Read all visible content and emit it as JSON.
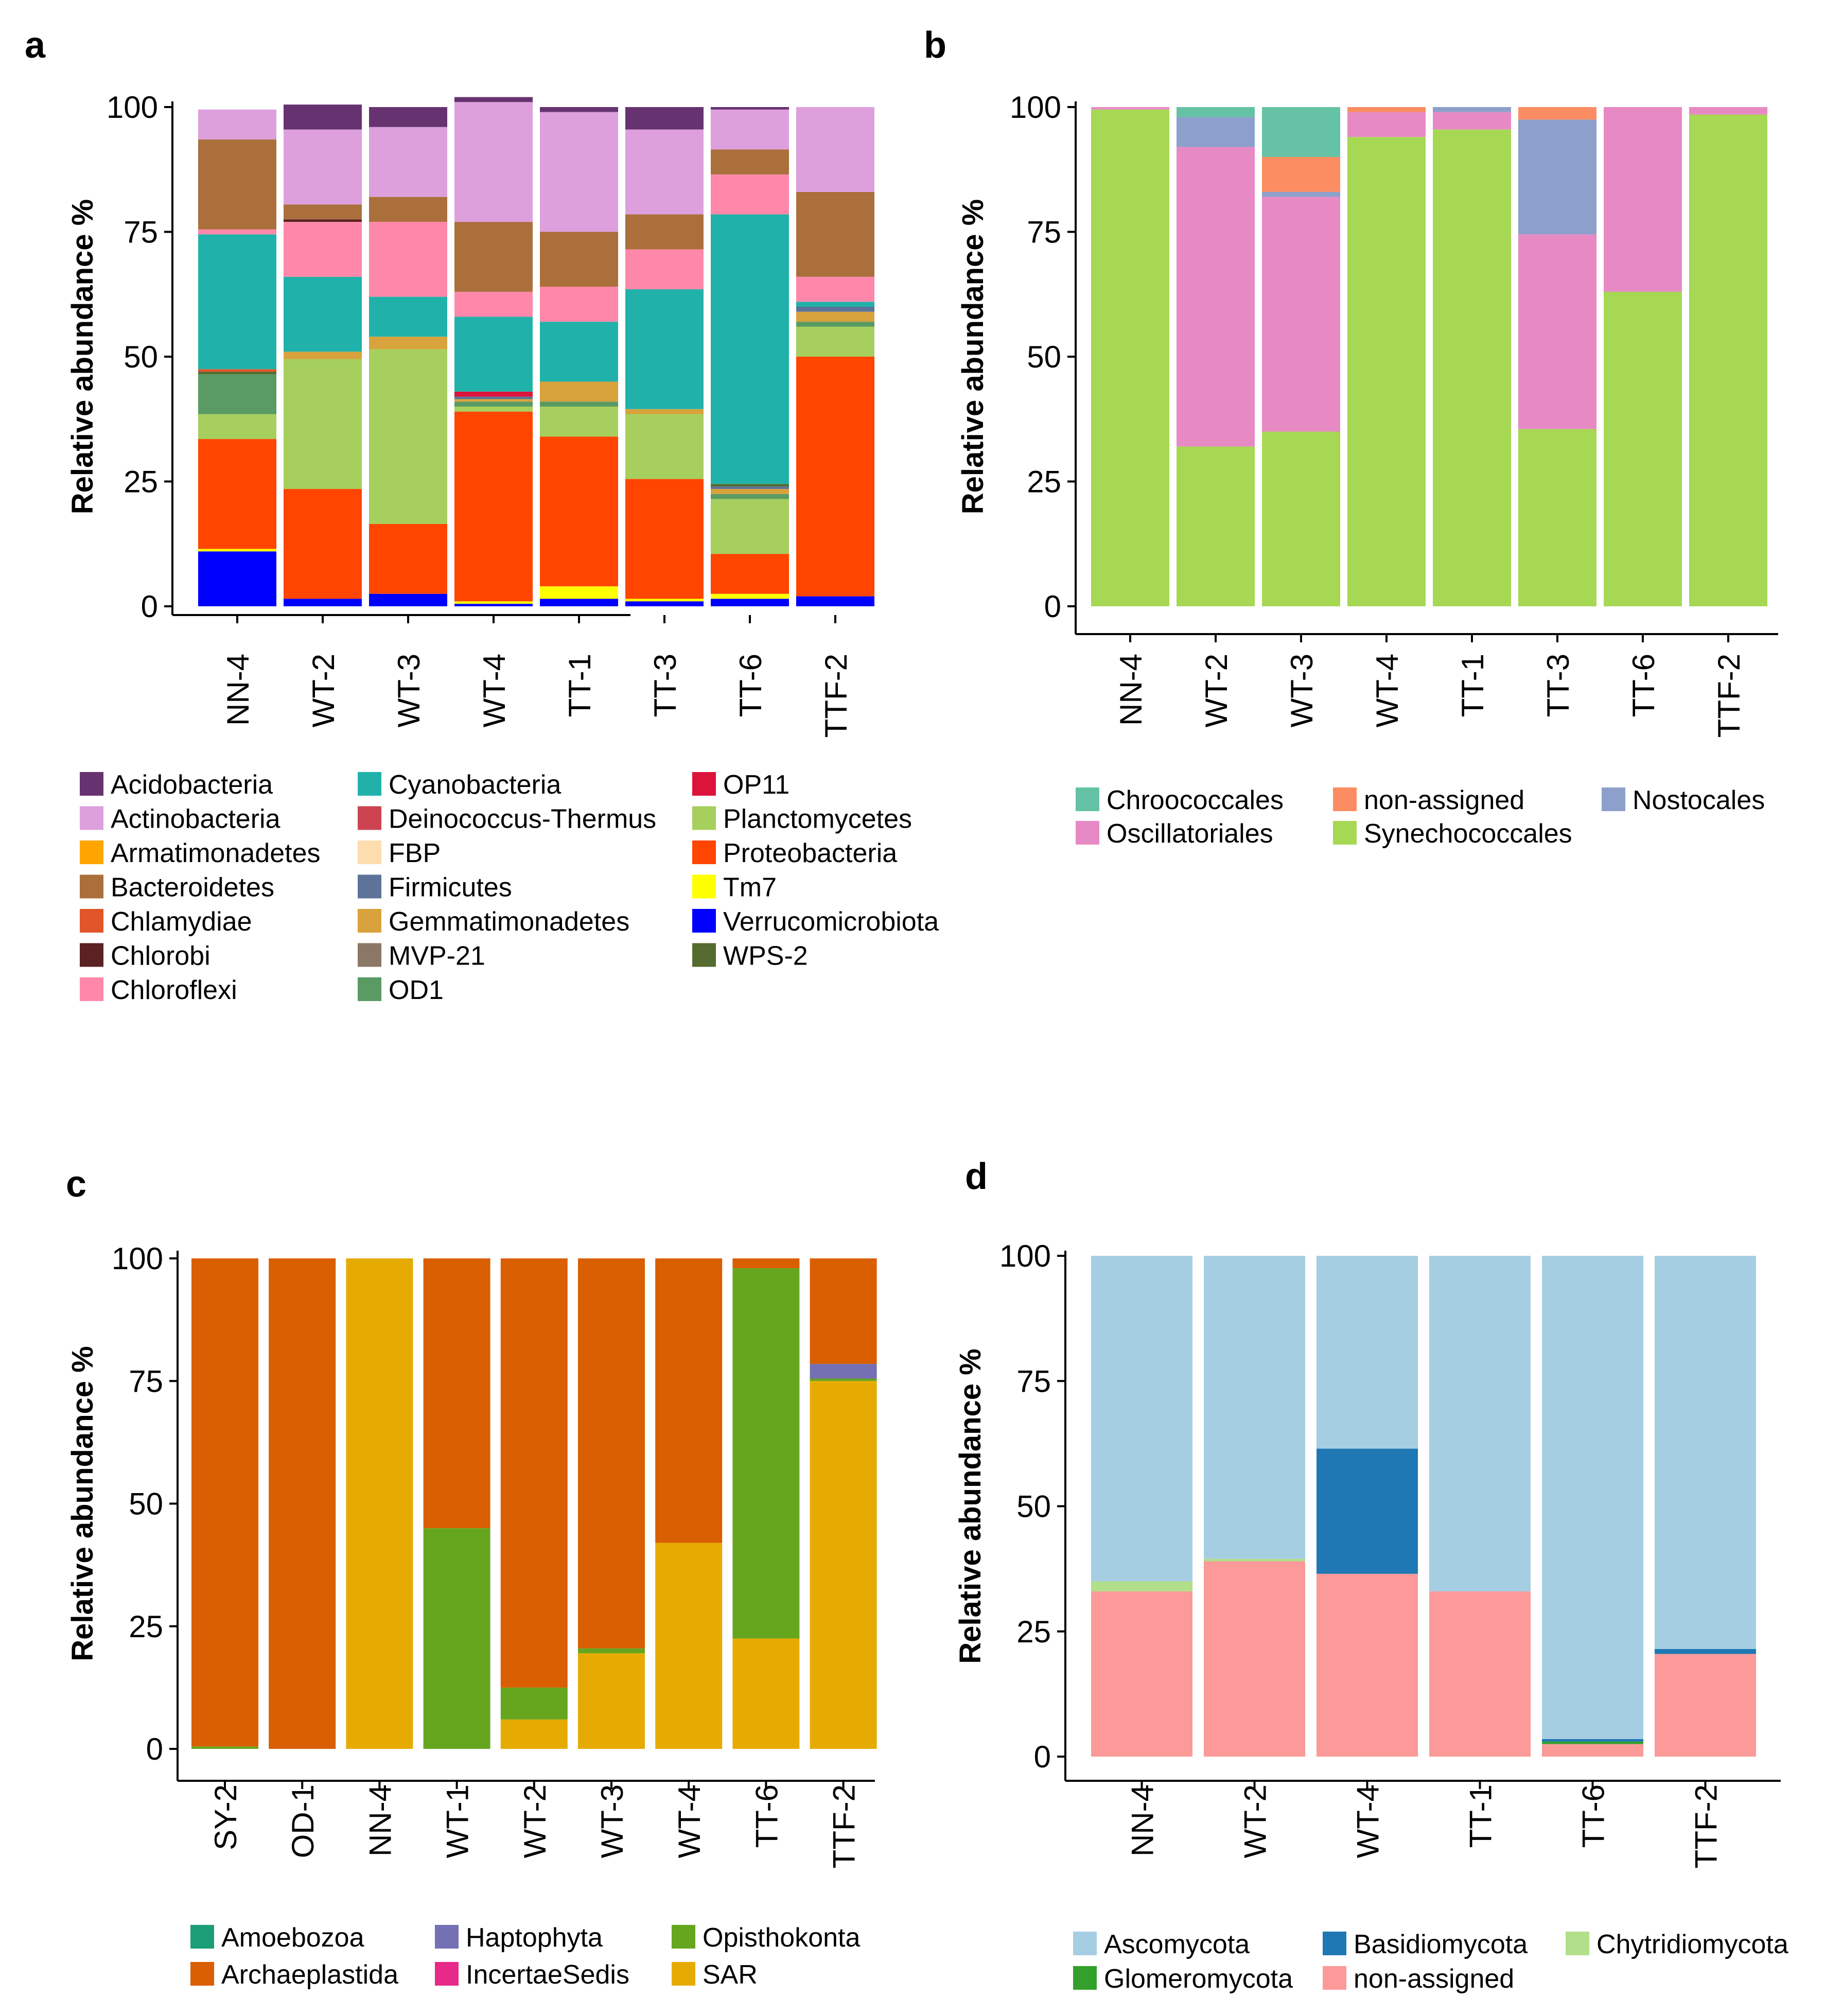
{
  "chart_data": [
    {
      "panel_label": "a",
      "type": "bar",
      "stacked": true,
      "ylabel": "Relative abundance %",
      "yticks": [
        "0",
        "25",
        "50",
        "75",
        "100"
      ],
      "ylim": [
        0,
        100
      ],
      "categories": [
        "NN-4",
        "WT-2",
        "WT-3",
        "WT-4",
        "TT-1",
        "TT-3",
        "TT-6",
        "TTF-2"
      ],
      "legend_columns": 3,
      "series": [
        {
          "name": "Verrucomicrobiota",
          "color": "#0000ff",
          "values": [
            11,
            1.5,
            2.5,
            0.5,
            1.5,
            1,
            1.5,
            2
          ]
        },
        {
          "name": "Tm7",
          "color": "#ffff00",
          "values": [
            0.5,
            0,
            0,
            0.5,
            2.5,
            0.5,
            1,
            0
          ]
        },
        {
          "name": "Proteobacteria",
          "color": "#ff4500",
          "values": [
            22,
            22,
            14,
            38,
            30,
            24,
            8,
            48
          ]
        },
        {
          "name": "Planctomycetes",
          "color": "#a6cf5d",
          "values": [
            5,
            26,
            35,
            1,
            6,
            13,
            11,
            6
          ]
        },
        {
          "name": "OD1",
          "color": "#5a9a63",
          "values": [
            8,
            0,
            0,
            1,
            1,
            0,
            1,
            1
          ]
        },
        {
          "name": "Gemmatimonadetes",
          "color": "#d8a23c",
          "values": [
            0,
            1.5,
            2.5,
            0.5,
            4,
            1,
            1,
            2
          ]
        },
        {
          "name": "Firmicutes",
          "color": "#5d7399",
          "values": [
            0,
            0,
            0,
            0.5,
            0,
            0,
            0.5,
            1
          ]
        },
        {
          "name": "OP11",
          "color": "#dc143c",
          "values": [
            0,
            0,
            0,
            1,
            0,
            0,
            0,
            0
          ]
        },
        {
          "name": "WPS-2",
          "color": "#556b2f",
          "values": [
            0.5,
            0,
            0,
            0,
            0,
            0,
            0.5,
            0
          ]
        },
        {
          "name": "Chlamydiae",
          "color": "#e0552a",
          "values": [
            0.5,
            0,
            0,
            0,
            0,
            0,
            0,
            0
          ]
        },
        {
          "name": "Cyanobacteria",
          "color": "#20b2aa",
          "values": [
            27,
            15,
            8,
            15,
            12,
            24,
            54,
            1
          ]
        },
        {
          "name": "Chloroflexi",
          "color": "#ff88aa",
          "values": [
            1,
            11,
            15,
            5,
            7,
            8,
            8,
            5
          ]
        },
        {
          "name": "Chlorobi",
          "color": "#5a2222",
          "values": [
            0,
            0.5,
            0,
            0,
            0,
            0,
            0,
            0
          ]
        },
        {
          "name": "Bacteroidetes",
          "color": "#ab6f3c",
          "values": [
            18,
            3,
            5,
            14,
            11,
            7,
            5,
            17
          ]
        },
        {
          "name": "Actinobacteria",
          "color": "#dda0dd",
          "values": [
            6,
            15,
            14,
            24,
            24,
            17,
            8,
            17
          ]
        },
        {
          "name": "Acidobacteria",
          "color": "#663370",
          "values": [
            0,
            5,
            4,
            1,
            1,
            4.5,
            0.5,
            0
          ]
        }
      ],
      "legend": [
        "Acidobacteria",
        "Actinobacteria",
        "Armatimonadetes",
        "Bacteroidetes",
        "Chlamydiae",
        "Chlorobi",
        "Chloroflexi",
        "Cyanobacteria",
        "Deinococcus-Thermus",
        "FBP",
        "Firmicutes",
        "Gemmatimonadetes",
        "MVP-21",
        "OD1",
        "OP11",
        "Planctomycetes",
        "Proteobacteria",
        "Tm7",
        "Verrucomicrobiota",
        "WPS-2"
      ],
      "legend_colors": [
        "#663370",
        "#dda0dd",
        "#ffa500",
        "#ab6f3c",
        "#e0552a",
        "#5a2222",
        "#ff88aa",
        "#20b2aa",
        "#cd4450",
        "#fddcad",
        "#5d7399",
        "#d8a23c",
        "#8b7765",
        "#5a9a63",
        "#dc143c",
        "#a6cf5d",
        "#ff4500",
        "#ffff00",
        "#0000ff",
        "#556b2f"
      ]
    },
    {
      "panel_label": "b",
      "type": "bar",
      "stacked": true,
      "ylabel": "Relative abundance %",
      "yticks": [
        "0",
        "25",
        "50",
        "75",
        "100"
      ],
      "ylim": [
        0,
        100
      ],
      "categories": [
        "NN-4",
        "WT-2",
        "WT-3",
        "WT-4",
        "TT-1",
        "TT-3",
        "TT-6",
        "TTF-2"
      ],
      "legend_columns": 3,
      "series": [
        {
          "name": "Synechococcales",
          "color": "#a6d854",
          "values": [
            99.5,
            32,
            35,
            94,
            95.5,
            35.5,
            63,
            98.5
          ]
        },
        {
          "name": "Oscillatoriales",
          "color": "#e78ac3",
          "values": [
            0.5,
            60,
            47,
            5,
            3.5,
            39,
            37,
            1.5
          ]
        },
        {
          "name": "Nostocales",
          "color": "#8da0cb",
          "values": [
            0,
            6,
            1,
            0,
            1,
            23,
            0,
            0
          ]
        },
        {
          "name": "non-assigned",
          "color": "#fc8d62",
          "values": [
            0,
            0,
            7,
            1,
            0,
            2.5,
            0,
            0
          ]
        },
        {
          "name": "Chroococcales",
          "color": "#66c2a5",
          "values": [
            0,
            2,
            10,
            0,
            0,
            0,
            0,
            0
          ]
        }
      ],
      "legend": [
        "Chroococcales",
        "Oscillatoriales",
        "non-assigned",
        "Synechococcales",
        "Nostocales"
      ],
      "legend_colors": [
        "#66c2a5",
        "#e78ac3",
        "#fc8d62",
        "#a6d854",
        "#8da0cb"
      ]
    },
    {
      "panel_label": "c",
      "type": "bar",
      "stacked": true,
      "ylabel": "Relative abundance %",
      "yticks": [
        "0",
        "25",
        "50",
        "75",
        "100"
      ],
      "ylim": [
        0,
        100
      ],
      "categories": [
        "SY-2",
        "OD-1",
        "NN-4",
        "WT-1",
        "WT-2",
        "WT-3",
        "WT-4",
        "TT-6",
        "TTF-2"
      ],
      "legend_columns": 3,
      "series": [
        {
          "name": "SAR",
          "color": "#e6ab02",
          "values": [
            0,
            0,
            100,
            0,
            6,
            19.5,
            42,
            22.5,
            75
          ]
        },
        {
          "name": "Opisthokonta",
          "color": "#66a61e",
          "values": [
            0.5,
            0,
            0,
            45,
            6.5,
            1,
            0,
            75.5,
            0.5
          ]
        },
        {
          "name": "Haptophyta",
          "color": "#7570b3",
          "values": [
            0,
            0,
            0,
            0,
            0,
            0,
            0,
            0,
            3
          ]
        },
        {
          "name": "Archaeplastida",
          "color": "#d95f02",
          "values": [
            99.5,
            100,
            0,
            55,
            87.5,
            79.5,
            58,
            2,
            21.5
          ]
        }
      ],
      "legend": [
        "Amoebozoa",
        "Archaeplastida",
        "Haptophyta",
        "IncertaeSedis",
        "Opisthokonta",
        "SAR"
      ],
      "legend_colors": [
        "#1b9e77",
        "#d95f02",
        "#7570b3",
        "#e7298a",
        "#66a61e",
        "#e6ab02"
      ]
    },
    {
      "panel_label": "d",
      "type": "bar",
      "stacked": true,
      "ylabel": "Relative abundance %",
      "yticks": [
        "0",
        "25",
        "50",
        "75",
        "100"
      ],
      "ylim": [
        0,
        100
      ],
      "categories": [
        "NN-4",
        "WT-2",
        "WT-4",
        "TT-1",
        "TT-6",
        "TTF-2"
      ],
      "legend_columns": 3,
      "series": [
        {
          "name": "non-assigned",
          "color": "#fb9a99",
          "values": [
            33,
            39,
            36.5,
            33,
            2.5,
            20.5
          ]
        },
        {
          "name": "Glomeromycota",
          "color": "#33a02c",
          "values": [
            0,
            0,
            0,
            0,
            0.5,
            0
          ]
        },
        {
          "name": "Chytridiomycota",
          "color": "#b2df8a",
          "values": [
            2,
            0.5,
            0,
            0,
            0,
            0
          ]
        },
        {
          "name": "Basidiomycota",
          "color": "#1f78b4",
          "values": [
            0,
            0,
            25,
            0,
            0.5,
            1
          ]
        },
        {
          "name": "Ascomycota",
          "color": "#a6cee3",
          "values": [
            65,
            60.5,
            38.5,
            67,
            96.5,
            78.5
          ]
        }
      ],
      "legend": [
        "Ascomycota",
        "Glomeromycota",
        "Basidiomycota",
        "non-assigned",
        "Chytridiomycota"
      ],
      "legend_colors": [
        "#a6cee3",
        "#33a02c",
        "#1f78b4",
        "#fb9a99",
        "#b2df8a"
      ]
    }
  ]
}
